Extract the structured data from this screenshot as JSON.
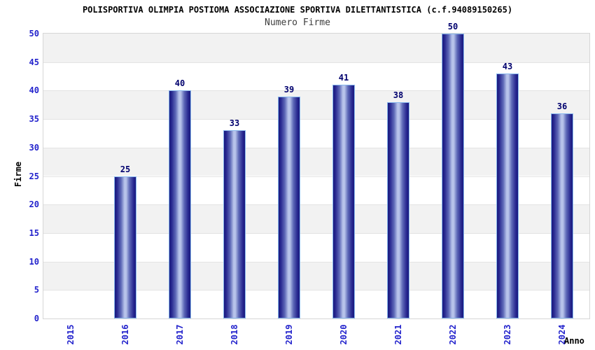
{
  "chart_data": {
    "type": "bar",
    "title": "POLISPORTIVA OLIMPIA POSTIOMA ASSOCIAZIONE SPORTIVA DILETTANTISTICA (c.f.94089150265)",
    "subtitle": "Numero Firme",
    "xlabel": "Anno",
    "ylabel": "Firme",
    "categories": [
      "2015",
      "2016",
      "2017",
      "2018",
      "2019",
      "2020",
      "2021",
      "2022",
      "2023",
      "2024"
    ],
    "values": [
      null,
      25,
      40,
      33,
      39,
      41,
      38,
      50,
      43,
      36
    ],
    "ylim": [
      0,
      50
    ],
    "ytick_step": 5,
    "yticks": [
      0,
      5,
      10,
      15,
      20,
      25,
      30,
      35,
      40,
      45,
      50
    ],
    "grid": "alternating-horizontal-bands",
    "legend": "none",
    "colors": {
      "axis_tick_text": "#2222cc",
      "value_label_text": "#00006e",
      "bar_border": "#88b8ee",
      "bar_dark": "#1a1a7e",
      "bar_dark2": "#26268f",
      "bar_mid": "#5f6ab8",
      "bar_light": "#b7c3ea",
      "band_gray": "#f2f2f2",
      "band_white": "#ffffff",
      "plot_border": "#d6d6d6",
      "grid_line": "#e3e3e3",
      "title_text": "#000000",
      "subtitle_text": "#3d3d3d",
      "axis_title_text": "#000000"
    }
  }
}
